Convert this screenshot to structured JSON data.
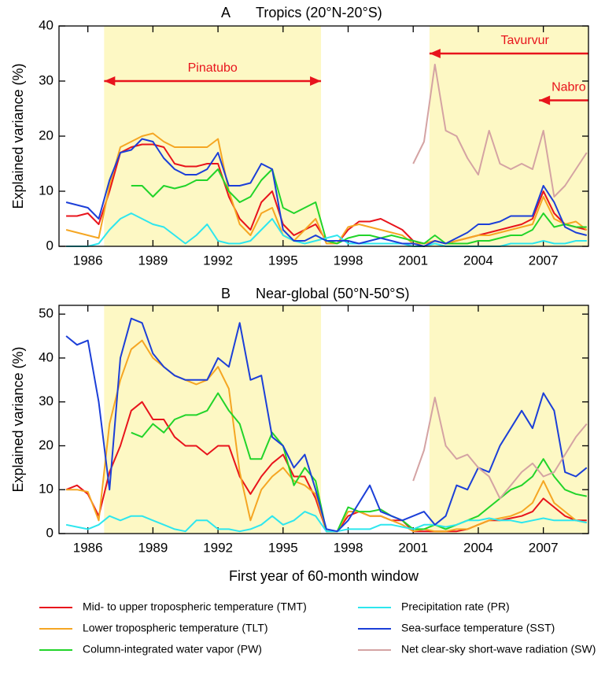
{
  "chart_data": [
    {
      "type": "line",
      "panel": "A",
      "title": "Tropics (20°N-20°S)",
      "ylabel": "Explained variance (%)",
      "xlim": [
        1984.67,
        2009.08
      ],
      "xticks": [
        1986,
        1989,
        1992,
        1995,
        1998,
        2001,
        2004,
        2007
      ],
      "ylim": [
        0,
        40
      ],
      "yticks": [
        0,
        10,
        20,
        30,
        40
      ],
      "shaded": [
        [
          1986.75,
          1996.75
        ],
        [
          2001.75,
          2009.08
        ]
      ],
      "shade_color": "#fdf8c4",
      "annotations": [
        {
          "label": "Pinatubo",
          "from": 1986.75,
          "to": 1996.75,
          "y": 30,
          "heads": "both"
        },
        {
          "label": "Tavurvur",
          "from": 2001.75,
          "to": 2009.08,
          "y": 35,
          "heads": "start"
        },
        {
          "label": "Nabro",
          "from": 2006.8,
          "to": 2009.08,
          "y": 26.5,
          "heads": "start"
        }
      ],
      "x": [
        1985,
        1985.5,
        1986,
        1986.5,
        1987,
        1987.5,
        1988,
        1988.5,
        1989,
        1989.5,
        1990,
        1990.5,
        1991,
        1991.5,
        1992,
        1992.5,
        1993,
        1993.5,
        1994,
        1994.5,
        1995,
        1995.5,
        1996,
        1996.5,
        1997,
        1997.5,
        1998,
        1998.5,
        1999,
        1999.5,
        2000,
        2000.5,
        2001,
        2001.5,
        2002,
        2002.5,
        2003,
        2003.5,
        2004,
        2004.5,
        2005,
        2005.5,
        2006,
        2006.5,
        2007,
        2007.5,
        2008,
        2008.5,
        2009
      ],
      "series": [
        {
          "name": "Mid- to upper tropospheric temperature (TMT)",
          "color": "#e8141c",
          "values": [
            5.5,
            5.5,
            6,
            4,
            10,
            17,
            18,
            18.5,
            18.5,
            18,
            15,
            14.5,
            14.5,
            15,
            15,
            9,
            5,
            3,
            8,
            10,
            4,
            2,
            3,
            4,
            1,
            0.5,
            3,
            4.5,
            4.5,
            5,
            4,
            3,
            1,
            0.5,
            1,
            0.5,
            1,
            1.5,
            2,
            2.5,
            3,
            3.5,
            4,
            5,
            10,
            6,
            4,
            3.5,
            3
          ]
        },
        {
          "name": "Lower tropospheric temperature (TLT)",
          "color": "#f5a623",
          "values": [
            3,
            2.5,
            2,
            1.5,
            11,
            18,
            19,
            20,
            20.5,
            19,
            18,
            18,
            18,
            18,
            19.5,
            10,
            4,
            2,
            6,
            7,
            2,
            1,
            3,
            5,
            0.5,
            0.5,
            3.5,
            4,
            3.5,
            3,
            2.5,
            2,
            0.5,
            0.5,
            1,
            0.5,
            1,
            1.5,
            2,
            2,
            2.5,
            3,
            3.5,
            4,
            9,
            5,
            4,
            4.5,
            3
          ]
        },
        {
          "name": "Column-integrated water vapor (PW)",
          "color": "#22d42a",
          "values": [
            null,
            null,
            null,
            null,
            null,
            null,
            11,
            11,
            9,
            11,
            10.5,
            11,
            12,
            12,
            14,
            10,
            8,
            9,
            12,
            14,
            7,
            6,
            7,
            8,
            1,
            0.5,
            1.5,
            2,
            2,
            1.5,
            2,
            1.5,
            1,
            0.5,
            2,
            0.5,
            0.5,
            0.5,
            1,
            1,
            1.5,
            2,
            2,
            3,
            6,
            3.5,
            4,
            3.5,
            3.5
          ]
        },
        {
          "name": "Precipitation rate (PR)",
          "color": "#2ee6ee",
          "values": [
            0,
            0,
            0,
            0.5,
            3,
            5,
            6,
            5,
            4,
            3.5,
            2,
            0.5,
            2,
            4,
            1,
            0.5,
            0.5,
            1,
            3,
            5,
            2,
            1,
            0.5,
            1,
            1.5,
            2,
            0.5,
            0.5,
            0.5,
            0.5,
            0.5,
            0.5,
            0,
            0,
            0.5,
            0,
            0,
            0,
            0,
            0,
            0,
            0.5,
            0.5,
            0.5,
            1,
            0.5,
            0.5,
            1,
            1
          ]
        },
        {
          "name": "Sea-surface temperature (SST)",
          "color": "#1c3fd8",
          "values": [
            8,
            7.5,
            7,
            5,
            12,
            17,
            17.5,
            19.5,
            19,
            16,
            14,
            13,
            13,
            14,
            17,
            11,
            11,
            11.5,
            15,
            14,
            3,
            1,
            1,
            2,
            1,
            1,
            1,
            0.5,
            1,
            1.5,
            1,
            0.5,
            0.5,
            0,
            1,
            0.5,
            1.5,
            2.5,
            4,
            4,
            4.5,
            5.5,
            5.5,
            5.5,
            11,
            8,
            3.5,
            2.5,
            2
          ]
        },
        {
          "name": "Net clear-sky short-wave radiation (SW)",
          "color": "#d4a3a3",
          "values": [
            null,
            null,
            null,
            null,
            null,
            null,
            null,
            null,
            null,
            null,
            null,
            null,
            null,
            null,
            null,
            null,
            null,
            null,
            null,
            null,
            null,
            null,
            null,
            null,
            null,
            null,
            null,
            null,
            null,
            null,
            null,
            null,
            15,
            19,
            33,
            21,
            20,
            16,
            13,
            21,
            15,
            14,
            15,
            14,
            21,
            9,
            11,
            14,
            17
          ]
        }
      ]
    },
    {
      "type": "line",
      "panel": "B",
      "title": "Near-global (50°N-50°S)",
      "ylabel": "Explained variance (%)",
      "xlabel": "First year of 60-month window",
      "xlim": [
        1984.67,
        2009.08
      ],
      "xticks": [
        1986,
        1989,
        1992,
        1995,
        1998,
        2001,
        2004,
        2007
      ],
      "ylim": [
        0,
        52
      ],
      "yticks": [
        0,
        10,
        20,
        30,
        40,
        50
      ],
      "shaded": [
        [
          1986.75,
          1996.75
        ],
        [
          2001.75,
          2009.08
        ]
      ],
      "shade_color": "#fdf8c4",
      "x": [
        1985,
        1985.5,
        1986,
        1986.5,
        1987,
        1987.5,
        1988,
        1988.5,
        1989,
        1989.5,
        1990,
        1990.5,
        1991,
        1991.5,
        1992,
        1992.5,
        1993,
        1993.5,
        1994,
        1994.5,
        1995,
        1995.5,
        1996,
        1996.5,
        1997,
        1997.5,
        1998,
        1998.5,
        1999,
        1999.5,
        2000,
        2000.5,
        2001,
        2001.5,
        2002,
        2002.5,
        2003,
        2003.5,
        2004,
        2004.5,
        2005,
        2005.5,
        2006,
        2006.5,
        2007,
        2007.5,
        2008,
        2008.5,
        2009
      ],
      "series": [
        {
          "values": [
            10,
            11,
            9,
            4,
            14,
            20,
            28,
            30,
            26,
            26,
            22,
            20,
            20,
            18,
            20,
            20,
            13,
            9,
            13,
            16,
            18,
            13,
            13,
            8,
            0.5,
            0.5,
            4,
            5,
            4,
            4,
            3,
            3,
            0.5,
            0.5,
            0.5,
            0.5,
            0.5,
            1,
            2,
            3,
            3,
            3.5,
            4,
            5,
            8,
            6,
            4,
            3,
            3
          ]
        },
        {
          "values": [
            10,
            10,
            9.5,
            3,
            25,
            35,
            42,
            44,
            40,
            38,
            36,
            35,
            34,
            35,
            38,
            33,
            14,
            3,
            10,
            13,
            15,
            12,
            11,
            9,
            0.5,
            0.5,
            5,
            5,
            4,
            4,
            3,
            2,
            0.5,
            1,
            0.5,
            0.5,
            1,
            1,
            2,
            3,
            3.5,
            4,
            5,
            7,
            12,
            7,
            5,
            3,
            2.5
          ]
        },
        {
          "values": [
            null,
            null,
            null,
            null,
            null,
            null,
            23,
            22,
            25,
            23,
            26,
            27,
            27,
            28,
            32,
            28,
            25,
            17,
            17,
            23,
            20,
            11,
            15,
            12,
            0.5,
            0.5,
            6,
            5,
            5,
            5.5,
            4,
            3,
            1,
            1,
            2,
            1,
            2,
            3,
            4,
            6,
            8,
            10,
            11,
            13,
            17,
            13,
            10,
            9,
            8.5
          ]
        },
        {
          "values": [
            2,
            1.5,
            1,
            2,
            4,
            3,
            4,
            4,
            3,
            2,
            1,
            0.5,
            3,
            3,
            1,
            1,
            0.5,
            1,
            2,
            4,
            2,
            3,
            5,
            4,
            0.5,
            0.5,
            1,
            1,
            1,
            2,
            2,
            1.5,
            1,
            2,
            2,
            1.5,
            2,
            3,
            3,
            3.5,
            3,
            3,
            2.5,
            3,
            3.5,
            3,
            3,
            3,
            2.5
          ]
        },
        {
          "values": [
            45,
            43,
            44,
            30,
            10,
            40,
            49,
            48,
            41,
            38,
            36,
            35,
            35,
            35,
            40,
            38,
            48,
            35,
            36,
            22,
            20,
            15,
            18,
            10,
            1,
            0.5,
            3,
            7,
            11,
            5,
            4,
            3,
            4,
            5,
            2,
            4,
            11,
            10,
            15,
            14,
            20,
            24,
            28,
            24,
            32,
            28,
            14,
            13,
            15
          ]
        },
        {
          "values": [
            null,
            null,
            null,
            null,
            null,
            null,
            null,
            null,
            null,
            null,
            null,
            null,
            null,
            null,
            null,
            null,
            null,
            null,
            null,
            null,
            null,
            null,
            null,
            null,
            null,
            null,
            null,
            null,
            null,
            null,
            null,
            null,
            12,
            19,
            31,
            20,
            17,
            18,
            15,
            13,
            8,
            11,
            14,
            16,
            13,
            14,
            18,
            22,
            25
          ]
        }
      ]
    }
  ]
}
